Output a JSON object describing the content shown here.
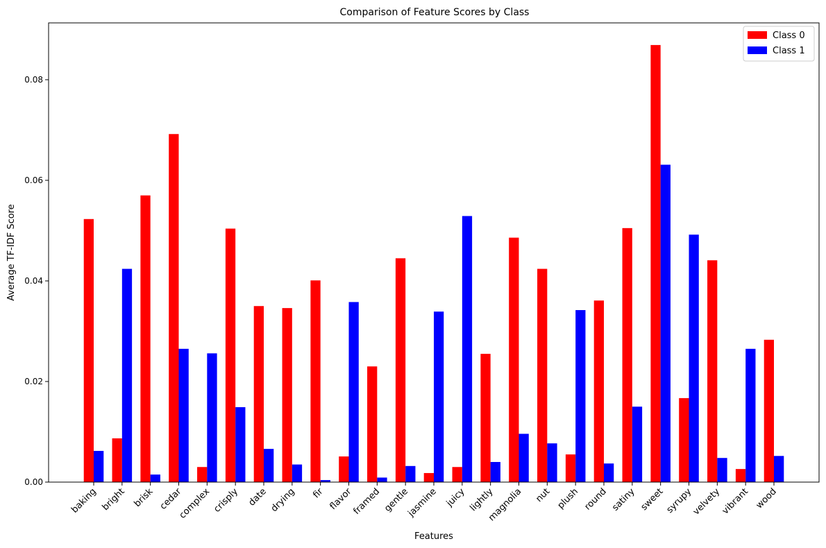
{
  "chart_data": {
    "type": "bar",
    "title": "Comparison of Feature Scores by Class",
    "xlabel": "Features",
    "ylabel": "Average TF-IDF Score",
    "ylim": [
      0,
      0.0913
    ],
    "yticks": [
      0.0,
      0.02,
      0.04,
      0.06,
      0.08
    ],
    "ytick_labels": [
      "0.00",
      "0.02",
      "0.04",
      "0.06",
      "0.08"
    ],
    "grid": false,
    "legend_position": "top-right",
    "categories": [
      "baking",
      "bright",
      "brisk",
      "cedar",
      "complex",
      "crisply",
      "date",
      "drying",
      "fir",
      "flavor",
      "framed",
      "gentle",
      "jasmine",
      "juicy",
      "lightly",
      "magnolia",
      "nut",
      "plush",
      "round",
      "satiny",
      "sweet",
      "syrupy",
      "velvety",
      "vibrant",
      "wood"
    ],
    "series": [
      {
        "name": "Class 0",
        "color": "#ff0000",
        "values": [
          0.0523,
          0.0087,
          0.057,
          0.0692,
          0.003,
          0.0504,
          0.035,
          0.0346,
          0.0401,
          0.0051,
          0.023,
          0.0445,
          0.0018,
          0.003,
          0.0255,
          0.0486,
          0.0424,
          0.0055,
          0.0361,
          0.0505,
          0.0869,
          0.0167,
          0.0441,
          0.0026,
          0.0283
        ]
      },
      {
        "name": "Class 1",
        "color": "#0000ff",
        "values": [
          0.0062,
          0.0424,
          0.0015,
          0.0265,
          0.0256,
          0.0149,
          0.0066,
          0.0035,
          0.0004,
          0.0358,
          0.0009,
          0.0032,
          0.0339,
          0.0529,
          0.004,
          0.0096,
          0.0077,
          0.0342,
          0.0037,
          0.015,
          0.0631,
          0.0492,
          0.0048,
          0.0265,
          0.0052
        ]
      }
    ]
  }
}
